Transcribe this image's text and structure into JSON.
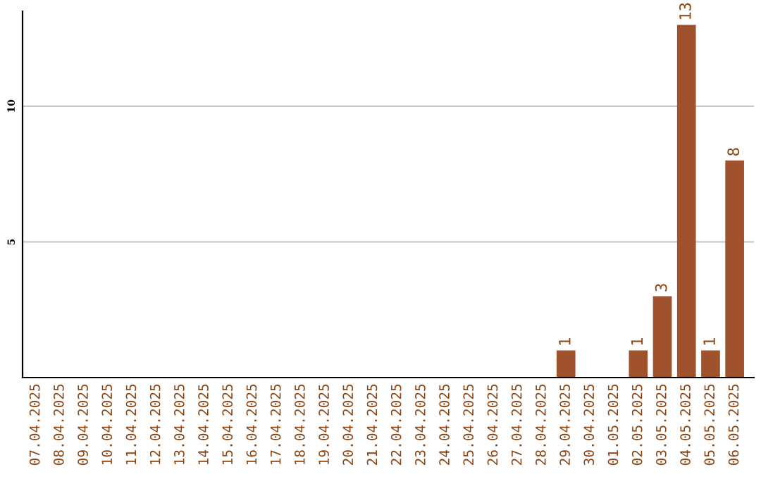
{
  "chart_data": {
    "type": "bar",
    "categories": [
      "07.04.2025",
      "08.04.2025",
      "09.04.2025",
      "10.04.2025",
      "11.04.2025",
      "12.04.2025",
      "13.04.2025",
      "14.04.2025",
      "15.04.2025",
      "16.04.2025",
      "17.04.2025",
      "18.04.2025",
      "19.04.2025",
      "20.04.2025",
      "21.04.2025",
      "22.04.2025",
      "23.04.2025",
      "24.04.2025",
      "25.04.2025",
      "26.04.2025",
      "27.04.2025",
      "28.04.2025",
      "29.04.2025",
      "30.04.2025",
      "01.05.2025",
      "02.05.2025",
      "03.05.2025",
      "04.05.2025",
      "05.05.2025",
      "06.05.2025"
    ],
    "values": [
      0,
      0,
      0,
      0,
      0,
      0,
      0,
      0,
      0,
      0,
      0,
      0,
      0,
      0,
      0,
      0,
      0,
      0,
      0,
      0,
      0,
      0,
      1,
      0,
      0,
      1,
      3,
      13,
      1,
      8
    ],
    "value_labels": [
      null,
      null,
      null,
      null,
      null,
      null,
      null,
      null,
      null,
      null,
      null,
      null,
      null,
      null,
      null,
      null,
      null,
      null,
      null,
      null,
      null,
      null,
      "1",
      null,
      null,
      "1",
      "3",
      "13",
      "1",
      "8"
    ],
    "color": "#a0522d",
    "ylim": [
      0,
      13.5
    ],
    "yticks": [
      5,
      10
    ],
    "grid": "y"
  }
}
